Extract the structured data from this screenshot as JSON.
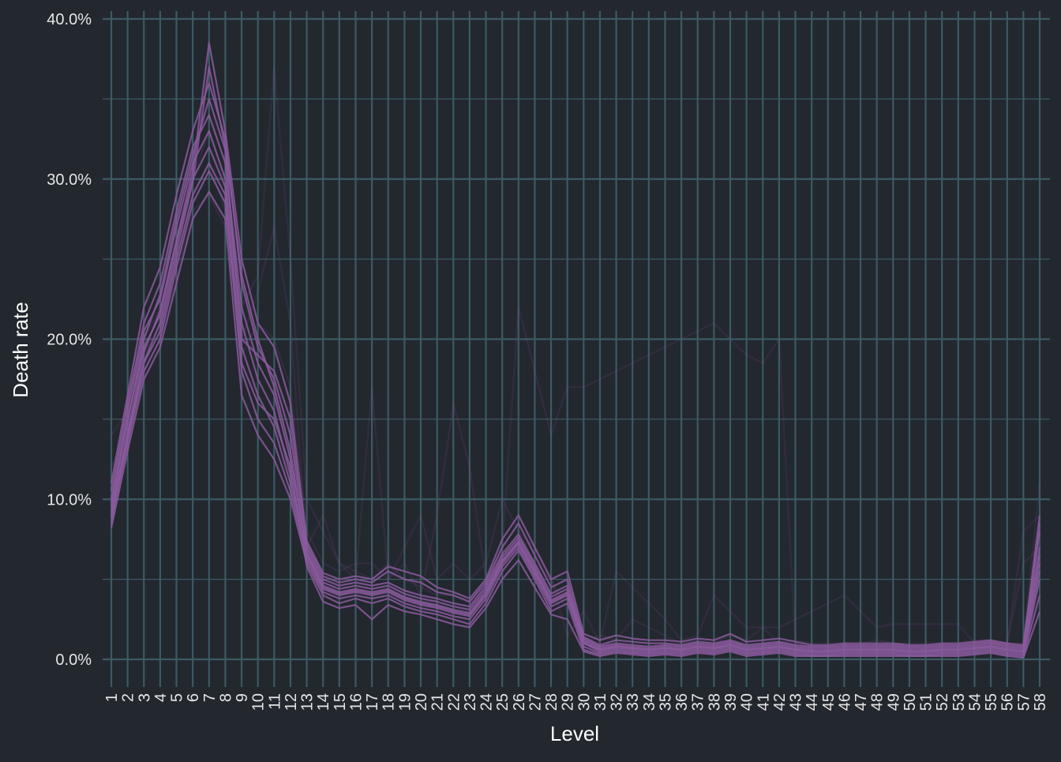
{
  "chart_data": {
    "type": "line",
    "title": "",
    "xlabel": "Level",
    "ylabel": "Death rate",
    "x": [
      "1",
      "2",
      "3",
      "4",
      "5",
      "6",
      "7",
      "8",
      "9",
      "10",
      "11",
      "12",
      "13",
      "14",
      "15",
      "16",
      "17",
      "18",
      "19",
      "20",
      "21",
      "22",
      "23",
      "24",
      "25",
      "26",
      "27",
      "28",
      "29",
      "30",
      "31",
      "32",
      "33",
      "34",
      "35",
      "36",
      "37",
      "38",
      "39",
      "40",
      "41",
      "42",
      "43",
      "44",
      "45",
      "46",
      "47",
      "48",
      "49",
      "50",
      "51",
      "52",
      "53",
      "54",
      "55",
      "56",
      "57",
      "58"
    ],
    "ylim": [
      -0.018,
      0.4
    ],
    "yticks": [
      0.0,
      0.1,
      0.2,
      0.3,
      0.4
    ],
    "ytick_labels": [
      "0.0%",
      "10.0%",
      "20.0%",
      "30.0%",
      "40.0%"
    ],
    "grid": true,
    "legend": "none",
    "colors": {
      "background": "#23272e",
      "grid": "#3c5a63",
      "line": "#8a5a9c",
      "text": "#ffffff",
      "tick_text": "#e6e6e6"
    },
    "faint_series": [
      {
        "values": [
          0.14,
          0.155,
          0.2,
          0.22,
          0.26,
          0.3,
          0.33,
          0.3,
          0.22,
          0.24,
          0.37,
          0.25,
          0.1,
          0.08,
          0.06,
          0.055,
          0.05,
          0.06,
          0.05,
          0.045,
          0.04,
          0.04,
          0.035,
          0.05,
          0.07,
          0.22,
          0.18,
          0.14,
          0.17,
          0.17,
          0.175,
          0.18,
          0.185,
          0.19,
          0.195,
          0.2,
          0.205,
          0.21,
          0.2,
          0.19,
          0.185,
          0.2,
          0.01,
          0.008,
          0.008,
          0.008,
          0.008,
          0.008,
          0.008,
          0.008,
          0.008,
          0.008,
          0.008,
          0.008,
          0.01,
          0.01,
          0.01,
          0.11
        ]
      },
      {
        "values": [
          0.12,
          0.14,
          0.18,
          0.2,
          0.24,
          0.28,
          0.29,
          0.27,
          0.2,
          0.23,
          0.27,
          0.21,
          0.07,
          0.09,
          0.06,
          0.05,
          0.17,
          0.05,
          0.06,
          0.04,
          0.09,
          0.16,
          0.12,
          0.05,
          0.06,
          0.08,
          0.07,
          0.05,
          0.015,
          0.03,
          0.01,
          0.055,
          0.045,
          0.035,
          0.025,
          0.012,
          0.015,
          0.04,
          0.03,
          0.02,
          0.02,
          0.02,
          0.025,
          0.03,
          0.035,
          0.04,
          0.03,
          0.02,
          0.022,
          0.022,
          0.022,
          0.022,
          0.022,
          0.01,
          0.01,
          0.01,
          0.08,
          0.09
        ]
      },
      {
        "values": [
          0.1,
          0.13,
          0.19,
          0.21,
          0.25,
          0.29,
          0.31,
          0.28,
          0.19,
          0.21,
          0.2,
          0.17,
          0.08,
          0.06,
          0.055,
          0.06,
          0.06,
          0.05,
          0.07,
          0.09,
          0.05,
          0.06,
          0.05,
          0.06,
          0.1,
          0.08,
          0.06,
          0.05,
          0.03,
          0.01,
          0.015,
          0.012,
          0.025,
          0.02,
          0.015,
          0.01,
          0.012,
          0.01,
          0.015,
          0.012,
          0.02,
          0.01,
          0.012,
          0.01,
          0.01,
          0.01,
          0.01,
          0.012,
          0.01,
          0.01,
          0.01,
          0.01,
          0.01,
          0.012,
          0.012,
          0.01,
          0.06,
          0.07
        ]
      }
    ],
    "series": [
      {
        "values": [
          0.082,
          0.13,
          0.175,
          0.195,
          0.235,
          0.275,
          0.292,
          0.275,
          0.165,
          0.14,
          0.125,
          0.1,
          0.06,
          0.04,
          0.035,
          0.038,
          0.035,
          0.038,
          0.033,
          0.03,
          0.028,
          0.025,
          0.022,
          0.035,
          0.055,
          0.068,
          0.05,
          0.03,
          0.035,
          0.006,
          0.003,
          0.005,
          0.004,
          0.003,
          0.004,
          0.003,
          0.005,
          0.004,
          0.006,
          0.003,
          0.004,
          0.005,
          0.003,
          0.002,
          0.002,
          0.003,
          0.003,
          0.003,
          0.003,
          0.002,
          0.002,
          0.003,
          0.003,
          0.004,
          0.005,
          0.003,
          0.002,
          0.04
        ]
      },
      {
        "values": [
          0.09,
          0.14,
          0.185,
          0.205,
          0.25,
          0.29,
          0.31,
          0.29,
          0.18,
          0.15,
          0.135,
          0.105,
          0.062,
          0.042,
          0.038,
          0.04,
          0.038,
          0.04,
          0.035,
          0.032,
          0.03,
          0.027,
          0.025,
          0.038,
          0.058,
          0.07,
          0.052,
          0.033,
          0.038,
          0.008,
          0.004,
          0.006,
          0.005,
          0.004,
          0.005,
          0.004,
          0.006,
          0.005,
          0.007,
          0.004,
          0.005,
          0.006,
          0.004,
          0.003,
          0.003,
          0.004,
          0.004,
          0.004,
          0.004,
          0.003,
          0.003,
          0.004,
          0.004,
          0.005,
          0.006,
          0.004,
          0.003,
          0.05
        ]
      },
      {
        "values": [
          0.095,
          0.15,
          0.195,
          0.215,
          0.26,
          0.3,
          0.32,
          0.295,
          0.195,
          0.165,
          0.145,
          0.11,
          0.064,
          0.044,
          0.04,
          0.042,
          0.04,
          0.042,
          0.037,
          0.034,
          0.032,
          0.029,
          0.027,
          0.04,
          0.06,
          0.072,
          0.054,
          0.035,
          0.04,
          0.01,
          0.005,
          0.007,
          0.006,
          0.005,
          0.006,
          0.005,
          0.007,
          0.006,
          0.008,
          0.005,
          0.006,
          0.007,
          0.005,
          0.004,
          0.004,
          0.005,
          0.005,
          0.005,
          0.005,
          0.004,
          0.004,
          0.005,
          0.005,
          0.006,
          0.007,
          0.005,
          0.004,
          0.06
        ]
      },
      {
        "values": [
          0.1,
          0.155,
          0.205,
          0.225,
          0.27,
          0.31,
          0.33,
          0.3,
          0.21,
          0.175,
          0.155,
          0.115,
          0.066,
          0.046,
          0.042,
          0.044,
          0.042,
          0.044,
          0.039,
          0.036,
          0.034,
          0.031,
          0.029,
          0.042,
          0.062,
          0.074,
          0.056,
          0.037,
          0.042,
          0.011,
          0.006,
          0.008,
          0.007,
          0.006,
          0.007,
          0.006,
          0.008,
          0.007,
          0.009,
          0.006,
          0.007,
          0.008,
          0.006,
          0.005,
          0.005,
          0.006,
          0.006,
          0.006,
          0.006,
          0.005,
          0.005,
          0.006,
          0.006,
          0.007,
          0.008,
          0.006,
          0.005,
          0.07
        ]
      },
      {
        "values": [
          0.105,
          0.16,
          0.21,
          0.235,
          0.28,
          0.32,
          0.34,
          0.31,
          0.22,
          0.185,
          0.165,
          0.125,
          0.068,
          0.048,
          0.044,
          0.046,
          0.044,
          0.046,
          0.041,
          0.038,
          0.036,
          0.033,
          0.031,
          0.044,
          0.064,
          0.076,
          0.058,
          0.039,
          0.044,
          0.012,
          0.007,
          0.009,
          0.008,
          0.007,
          0.008,
          0.007,
          0.009,
          0.008,
          0.01,
          0.007,
          0.008,
          0.009,
          0.007,
          0.006,
          0.006,
          0.007,
          0.007,
          0.007,
          0.007,
          0.006,
          0.006,
          0.007,
          0.007,
          0.008,
          0.009,
          0.007,
          0.006,
          0.08
        ]
      },
      {
        "values": [
          0.11,
          0.165,
          0.22,
          0.245,
          0.29,
          0.33,
          0.36,
          0.325,
          0.235,
          0.195,
          0.175,
          0.14,
          0.07,
          0.05,
          0.046,
          0.048,
          0.046,
          0.048,
          0.043,
          0.04,
          0.038,
          0.035,
          0.033,
          0.046,
          0.066,
          0.078,
          0.06,
          0.041,
          0.046,
          0.013,
          0.008,
          0.01,
          0.009,
          0.008,
          0.009,
          0.008,
          0.01,
          0.009,
          0.011,
          0.008,
          0.009,
          0.01,
          0.008,
          0.007,
          0.007,
          0.008,
          0.008,
          0.008,
          0.008,
          0.007,
          0.007,
          0.008,
          0.008,
          0.009,
          0.01,
          0.008,
          0.007,
          0.085
        ]
      },
      {
        "values": [
          0.085,
          0.135,
          0.18,
          0.2,
          0.245,
          0.285,
          0.305,
          0.285,
          0.185,
          0.16,
          0.15,
          0.12,
          0.058,
          0.036,
          0.032,
          0.034,
          0.025,
          0.034,
          0.03,
          0.028,
          0.025,
          0.022,
          0.02,
          0.032,
          0.05,
          0.062,
          0.045,
          0.028,
          0.025,
          0.005,
          0.002,
          0.004,
          0.003,
          0.002,
          0.003,
          0.002,
          0.004,
          0.003,
          0.005,
          0.002,
          0.003,
          0.004,
          0.002,
          0.002,
          0.002,
          0.002,
          0.002,
          0.002,
          0.002,
          0.002,
          0.002,
          0.002,
          0.002,
          0.003,
          0.004,
          0.002,
          0.001,
          0.03
        ]
      },
      {
        "values": [
          0.098,
          0.148,
          0.2,
          0.228,
          0.275,
          0.315,
          0.35,
          0.318,
          0.2,
          0.19,
          0.18,
          0.15,
          0.072,
          0.052,
          0.048,
          0.05,
          0.048,
          0.055,
          0.05,
          0.048,
          0.042,
          0.04,
          0.036,
          0.048,
          0.07,
          0.085,
          0.065,
          0.045,
          0.05,
          0.014,
          0.009,
          0.012,
          0.011,
          0.01,
          0.01,
          0.009,
          0.011,
          0.01,
          0.012,
          0.009,
          0.01,
          0.011,
          0.009,
          0.008,
          0.008,
          0.009,
          0.009,
          0.009,
          0.009,
          0.008,
          0.008,
          0.009,
          0.009,
          0.01,
          0.011,
          0.009,
          0.008,
          0.065
        ]
      },
      {
        "values": [
          0.092,
          0.142,
          0.192,
          0.218,
          0.262,
          0.305,
          0.385,
          0.33,
          0.25,
          0.21,
          0.195,
          0.16,
          0.074,
          0.054,
          0.05,
          0.052,
          0.05,
          0.058,
          0.055,
          0.052,
          0.045,
          0.042,
          0.038,
          0.05,
          0.075,
          0.09,
          0.07,
          0.05,
          0.055,
          0.016,
          0.012,
          0.015,
          0.013,
          0.012,
          0.012,
          0.011,
          0.013,
          0.012,
          0.016,
          0.011,
          0.012,
          0.013,
          0.011,
          0.009,
          0.009,
          0.01,
          0.01,
          0.01,
          0.01,
          0.009,
          0.009,
          0.01,
          0.01,
          0.011,
          0.012,
          0.01,
          0.009,
          0.09
        ]
      },
      {
        "values": [
          0.088,
          0.138,
          0.186,
          0.21,
          0.255,
          0.298,
          0.37,
          0.32,
          0.24,
          0.2,
          0.17,
          0.13,
          0.066,
          0.045,
          0.041,
          0.043,
          0.041,
          0.043,
          0.038,
          0.035,
          0.033,
          0.03,
          0.028,
          0.041,
          0.061,
          0.073,
          0.055,
          0.036,
          0.041,
          0.01,
          0.006,
          0.008,
          0.007,
          0.006,
          0.007,
          0.006,
          0.008,
          0.007,
          0.009,
          0.006,
          0.007,
          0.008,
          0.006,
          0.005,
          0.005,
          0.006,
          0.006,
          0.006,
          0.006,
          0.005,
          0.005,
          0.006,
          0.006,
          0.007,
          0.008,
          0.006,
          0.005,
          0.055
        ]
      }
    ]
  }
}
